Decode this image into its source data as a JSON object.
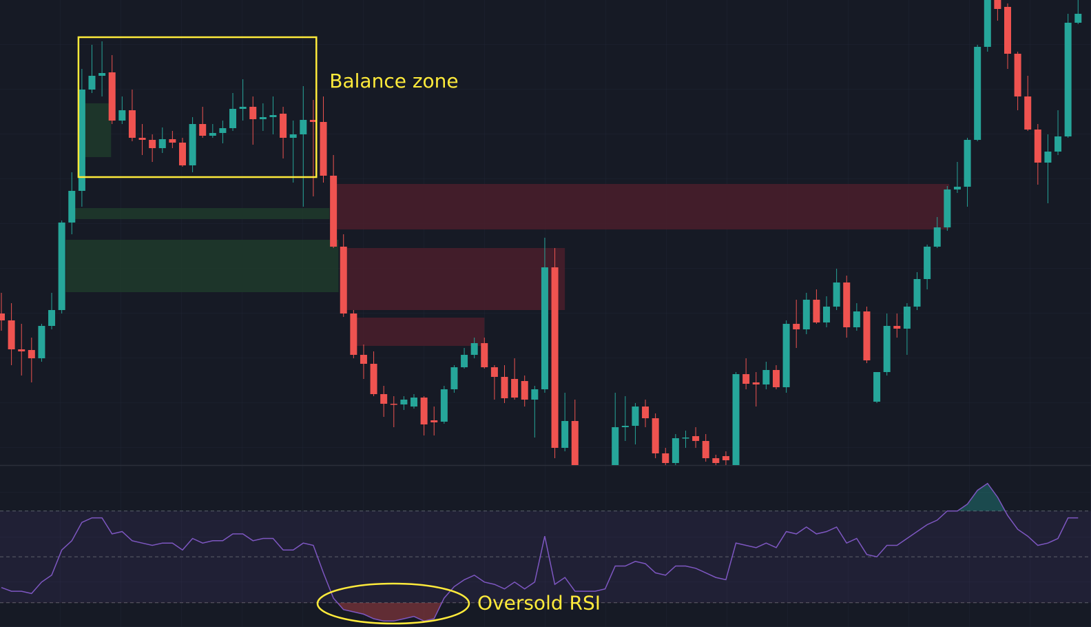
{
  "chart_data": [
    {
      "type": "candlestick",
      "up_color": "#26a69a",
      "down_color": "#ef5350",
      "ylim": [
        0,
        675
      ],
      "candles": {
        "open": [
          220,
          210,
          168,
          167,
          155,
          202,
          225,
          352,
          398,
          545,
          565,
          570,
          500,
          515,
          475,
          472,
          460,
          473,
          468,
          435,
          495,
          478,
          482,
          489,
          517,
          520,
          502,
          505,
          510,
          475,
          480,
          501,
          498,
          420,
          317,
          220,
          160,
          147,
          103,
          89,
          88,
          85,
          98,
          65,
          63,
          110,
          142,
          160,
          177,
          142,
          128,
          125,
          122,
          95,
          110,
          287,
          25,
          64,
          null,
          null,
          null,
          0,
          55,
          57,
          85,
          68,
          17,
          3,
          39,
          42,
          35,
          10,
          13,
          0,
          132,
          120,
          117,
          138,
          113,
          205,
          197,
          240,
          207,
          230,
          265,
          200,
          223,
          92,
          135,
          202,
          198,
          230,
          270,
          317,
          345,
          400,
          404,
          472,
          607,
          675,
          665,
          597,
          535,
          487,
          439,
          455,
          477,
          642
        ],
        "high": [
          250,
          235,
          205,
          185,
          205,
          250,
          355,
          425,
          575,
          610,
          615,
          595,
          535,
          545,
          495,
          480,
          490,
          485,
          475,
          505,
          520,
          495,
          500,
          540,
          560,
          535,
          525,
          535,
          520,
          500,
          550,
          530,
          535,
          450,
          335,
          225,
          175,
          165,
          115,
          100,
          100,
          103,
          100,
          85,
          115,
          145,
          170,
          185,
          185,
          145,
          145,
          155,
          130,
          115,
          330,
          315,
          105,
          95,
          null,
          null,
          null,
          105,
          100,
          90,
          95,
          75,
          25,
          45,
          50,
          55,
          45,
          15,
          20,
          135,
          155,
          135,
          150,
          145,
          210,
          240,
          250,
          255,
          245,
          285,
          275,
          235,
          230,
          135,
          220,
          220,
          235,
          280,
          320,
          360,
          405,
          440,
          475,
          610,
          675,
          675,
          670,
          600,
          565,
          495,
          480,
          515,
          655,
          675
        ],
        "low": [
          195,
          145,
          130,
          120,
          150,
          197,
          220,
          335,
          375,
          540,
          535,
          495,
          495,
          470,
          450,
          440,
          453,
          460,
          433,
          425,
          475,
          475,
          467,
          485,
          500,
          465,
          485,
          480,
          445,
          410,
          375,
          390,
          410,
          315,
          215,
          155,
          125,
          100,
          70,
          55,
          80,
          82,
          43,
          43,
          60,
          105,
          140,
          155,
          140,
          95,
          90,
          95,
          85,
          40,
          105,
          10,
          20,
          0,
          null,
          null,
          null,
          0,
          35,
          30,
          55,
          10,
          0,
          0,
          25,
          25,
          5,
          0,
          0,
          0,
          110,
          85,
          110,
          110,
          105,
          170,
          190,
          205,
          200,
          225,
          185,
          195,
          148,
          90,
          130,
          185,
          160,
          225,
          255,
          315,
          340,
          395,
          375,
          470,
          600,
          645,
          575,
          515,
          485,
          407,
          380,
          450,
          475,
          640
        ],
        "close": [
          210,
          168,
          165,
          155,
          202,
          225,
          352,
          398,
          545,
          565,
          569,
          500,
          515,
          475,
          472,
          460,
          473,
          468,
          435,
          495,
          478,
          482,
          489,
          517,
          520,
          502,
          505,
          508,
          475,
          480,
          501,
          498,
          420,
          317,
          220,
          160,
          147,
          103,
          89,
          88,
          95,
          98,
          59,
          62,
          110,
          142,
          160,
          177,
          142,
          128,
          97,
          98,
          95,
          110,
          287,
          25,
          64,
          0,
          null,
          null,
          null,
          55,
          57,
          85,
          68,
          17,
          3,
          39,
          40,
          35,
          10,
          3,
          7,
          132,
          118,
          117,
          138,
          113,
          205,
          197,
          240,
          207,
          230,
          265,
          200,
          223,
          152,
          135,
          202,
          198,
          230,
          270,
          317,
          345,
          400,
          404,
          472,
          607,
          675,
          662,
          597,
          535,
          487,
          439,
          455,
          477,
          642,
          655
        ]
      },
      "zones": [
        {
          "color": "#1e3b2c",
          "from": 8.2,
          "to": 10.9,
          "low": 447,
          "high": 525
        },
        {
          "color": "#1e3b2c",
          "from": 7.2,
          "to": 32.6,
          "low": 357,
          "high": 373
        },
        {
          "color": "#1e3b2c",
          "from": 6.4,
          "to": 33.5,
          "low": 251,
          "high": 327
        },
        {
          "color": "#4a1f2c",
          "from": 33.2,
          "to": 94.2,
          "low": 342,
          "high": 408
        },
        {
          "color": "#4a1f2c",
          "from": 34.1,
          "to": 56.0,
          "low": 225,
          "high": 315
        },
        {
          "color": "#4a1f2c",
          "from": 35.1,
          "to": 48.0,
          "low": 173,
          "high": 214
        }
      ],
      "box": {
        "label": "Balance zone",
        "color": "#ffeb3b",
        "from": 7.66,
        "to": 31.3,
        "low": 418,
        "high": 621
      }
    },
    {
      "type": "line",
      "color": "#7e57c2",
      "ylim": [
        20,
        90
      ],
      "levels": [
        30,
        50,
        70
      ],
      "values": [
        36.6,
        35,
        35,
        34,
        39,
        42,
        53,
        57,
        65,
        67,
        67,
        60,
        61,
        57,
        56,
        55,
        56,
        56,
        53,
        58,
        56,
        57,
        57,
        60,
        60,
        57,
        58,
        58,
        53,
        53,
        56,
        55,
        43,
        32,
        27,
        26,
        25,
        23,
        22,
        22,
        23,
        24,
        22,
        23,
        32,
        37,
        40,
        42,
        39,
        38,
        36,
        39,
        36,
        39,
        59,
        38,
        41,
        35,
        35,
        35,
        36,
        46,
        46,
        48,
        47,
        43,
        42,
        46,
        46,
        45,
        43,
        41,
        40,
        56,
        55,
        54,
        56,
        54,
        61,
        60,
        63,
        60,
        61,
        63,
        56,
        58,
        51,
        50,
        55,
        55,
        58,
        61,
        64,
        66,
        70,
        70,
        73,
        79,
        82,
        76,
        68,
        62,
        59,
        55,
        56,
        58,
        67,
        67
      ],
      "annotation": {
        "label": "Oversold RSI",
        "color": "#ffeb3b"
      }
    }
  ]
}
